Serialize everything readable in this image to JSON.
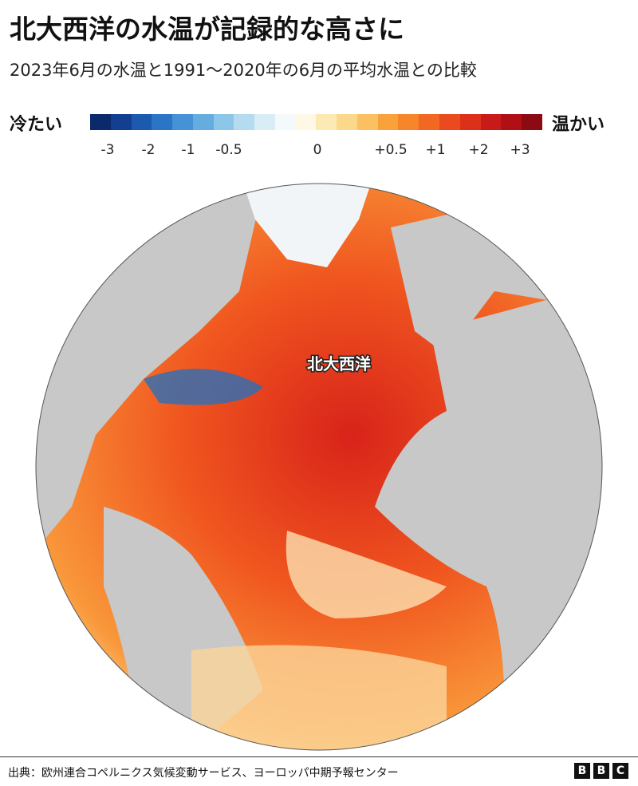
{
  "header": {
    "title": "北大西洋の水温が記録的な高さに",
    "subtitle": "2023年6月の水温と1991～2020年の6月の平均水温との比較"
  },
  "legend": {
    "cold_label": "冷たい",
    "warm_label": "温かい",
    "ticks": [
      "-3",
      "-2",
      "-1",
      "-0.5",
      "0",
      "+0.5",
      "+1",
      "+2",
      "+3"
    ],
    "colors": [
      "#0b2a6b",
      "#123f8f",
      "#1c5aae",
      "#2b75c6",
      "#4592d6",
      "#66addf",
      "#8cc6e8",
      "#b4dbef",
      "#d9edf6",
      "#f4fafc",
      "#fff8e6",
      "#fde9b3",
      "#fcd88a",
      "#fbc061",
      "#f9a23c",
      "#f7852a",
      "#f26722",
      "#e94b1e",
      "#dd301b",
      "#c91a1a",
      "#b00f16",
      "#8c0a12"
    ]
  },
  "map": {
    "label": "北大西洋"
  },
  "footer": {
    "source": "出典：欧州連合コペルニクス気候変動サービス、ヨーロッパ中期予報センター",
    "logo": [
      "B",
      "B",
      "C"
    ]
  }
}
